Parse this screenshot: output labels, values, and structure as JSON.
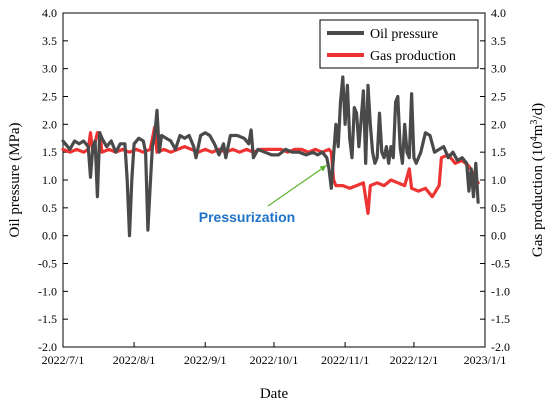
{
  "chart_data": {
    "type": "line",
    "xlabel": "Date",
    "ylabel_left": "Oil pressure (MPa)",
    "ylabel_right_parts": [
      "Gas production (10",
      "4",
      "m",
      "3",
      "/d)"
    ],
    "xlim": [
      "2022-07-01",
      "2023-01-01"
    ],
    "ylim_left": [
      -2.0,
      4.0
    ],
    "ylim_right": [
      -2.0,
      4.0
    ],
    "x_ticks": [
      {
        "date": "2022-07-01",
        "label": "2022/7/1"
      },
      {
        "date": "2022-08-01",
        "label": "2022/8/1"
      },
      {
        "date": "2022-09-01",
        "label": "2022/9/1"
      },
      {
        "date": "2022-10-01",
        "label": "2022/10/1"
      },
      {
        "date": "2022-11-01",
        "label": "2022/11/1"
      },
      {
        "date": "2022-12-01",
        "label": "2022/12/1"
      },
      {
        "date": "2023-01-01",
        "label": "2023/1/1"
      }
    ],
    "y_ticks": [
      "-2.0",
      "-1.5",
      "-1.0",
      "-0.5",
      "0.0",
      "0.5",
      "1.0",
      "1.5",
      "2.0",
      "2.5",
      "3.0",
      "3.5",
      "4.0"
    ],
    "legend_position": "top-right",
    "grid": false,
    "annotation": {
      "text": "Pressurization",
      "color": "#1e73c8",
      "arrow_color": "#5cb531",
      "target_date": "2022-10-30",
      "target_value": 1.55
    },
    "series": [
      {
        "name": "Oil pressure",
        "axis": "left",
        "color": "#4a4a4a",
        "points": [
          [
            "2022-07-01",
            1.7
          ],
          [
            "2022-07-02",
            1.65
          ],
          [
            "2022-07-04",
            1.55
          ],
          [
            "2022-07-06",
            1.7
          ],
          [
            "2022-07-08",
            1.65
          ],
          [
            "2022-07-10",
            1.7
          ],
          [
            "2022-07-12",
            1.6
          ],
          [
            "2022-07-13",
            1.05
          ],
          [
            "2022-07-14",
            1.6
          ],
          [
            "2022-07-15",
            1.7
          ],
          [
            "2022-07-16",
            0.7
          ],
          [
            "2022-07-17",
            1.85
          ],
          [
            "2022-07-18",
            1.75
          ],
          [
            "2022-07-20",
            1.6
          ],
          [
            "2022-07-22",
            1.7
          ],
          [
            "2022-07-24",
            1.5
          ],
          [
            "2022-07-26",
            1.65
          ],
          [
            "2022-07-28",
            1.65
          ],
          [
            "2022-07-29",
            1.0
          ],
          [
            "2022-07-30",
            0.0
          ],
          [
            "2022-07-31",
            1.0
          ],
          [
            "2022-08-01",
            1.65
          ],
          [
            "2022-08-03",
            1.75
          ],
          [
            "2022-08-05",
            1.7
          ],
          [
            "2022-08-06",
            1.5
          ],
          [
            "2022-08-07",
            0.1
          ],
          [
            "2022-08-08",
            0.9
          ],
          [
            "2022-08-09",
            1.6
          ],
          [
            "2022-08-10",
            1.8
          ],
          [
            "2022-08-11",
            2.25
          ],
          [
            "2022-08-12",
            1.5
          ],
          [
            "2022-08-13",
            1.8
          ],
          [
            "2022-08-15",
            1.75
          ],
          [
            "2022-08-17",
            1.7
          ],
          [
            "2022-08-19",
            1.55
          ],
          [
            "2022-08-21",
            1.8
          ],
          [
            "2022-08-23",
            1.75
          ],
          [
            "2022-08-25",
            1.8
          ],
          [
            "2022-08-27",
            1.6
          ],
          [
            "2022-08-28",
            1.4
          ],
          [
            "2022-08-30",
            1.8
          ],
          [
            "2022-09-01",
            1.85
          ],
          [
            "2022-09-03",
            1.8
          ],
          [
            "2022-09-05",
            1.65
          ],
          [
            "2022-09-07",
            1.45
          ],
          [
            "2022-09-09",
            1.65
          ],
          [
            "2022-09-10",
            1.4
          ],
          [
            "2022-09-12",
            1.8
          ],
          [
            "2022-09-15",
            1.8
          ],
          [
            "2022-09-18",
            1.75
          ],
          [
            "2022-09-20",
            1.65
          ],
          [
            "2022-09-21",
            1.9
          ],
          [
            "2022-09-22",
            1.4
          ],
          [
            "2022-09-24",
            1.55
          ],
          [
            "2022-09-27",
            1.5
          ],
          [
            "2022-09-30",
            1.45
          ],
          [
            "2022-10-03",
            1.45
          ],
          [
            "2022-10-06",
            1.55
          ],
          [
            "2022-10-09",
            1.5
          ],
          [
            "2022-10-12",
            1.5
          ],
          [
            "2022-10-15",
            1.45
          ],
          [
            "2022-10-18",
            1.5
          ],
          [
            "2022-10-20",
            1.45
          ],
          [
            "2022-10-22",
            1.5
          ],
          [
            "2022-10-24",
            1.4
          ],
          [
            "2022-10-25",
            1.2
          ],
          [
            "2022-10-26",
            0.85
          ],
          [
            "2022-10-27",
            1.45
          ],
          [
            "2022-10-28",
            2.0
          ],
          [
            "2022-10-29",
            1.6
          ],
          [
            "2022-10-30",
            2.4
          ],
          [
            "2022-10-31",
            2.85
          ],
          [
            "2022-11-01",
            2.0
          ],
          [
            "2022-11-02",
            2.7
          ],
          [
            "2022-11-03",
            1.75
          ],
          [
            "2022-11-04",
            1.4
          ],
          [
            "2022-11-05",
            2.3
          ],
          [
            "2022-11-06",
            2.2
          ],
          [
            "2022-11-07",
            1.6
          ],
          [
            "2022-11-08",
            2.1
          ],
          [
            "2022-11-09",
            2.6
          ],
          [
            "2022-11-10",
            1.3
          ],
          [
            "2022-11-11",
            2.7
          ],
          [
            "2022-11-12",
            2.0
          ],
          [
            "2022-11-13",
            1.5
          ],
          [
            "2022-11-14",
            1.3
          ],
          [
            "2022-11-15",
            1.4
          ],
          [
            "2022-11-16",
            2.2
          ],
          [
            "2022-11-17",
            1.5
          ],
          [
            "2022-11-18",
            1.4
          ],
          [
            "2022-11-19",
            1.6
          ],
          [
            "2022-11-20",
            1.3
          ],
          [
            "2022-11-21",
            1.6
          ],
          [
            "2022-11-22",
            1.4
          ],
          [
            "2022-11-23",
            2.4
          ],
          [
            "2022-11-24",
            2.5
          ],
          [
            "2022-11-25",
            1.6
          ],
          [
            "2022-11-26",
            1.3
          ],
          [
            "2022-11-27",
            2.0
          ],
          [
            "2022-11-28",
            1.5
          ],
          [
            "2022-11-29",
            1.4
          ],
          [
            "2022-11-30",
            2.55
          ],
          [
            "2022-12-01",
            1.4
          ],
          [
            "2022-12-02",
            1.3
          ],
          [
            "2022-12-04",
            1.5
          ],
          [
            "2022-12-06",
            1.85
          ],
          [
            "2022-12-08",
            1.8
          ],
          [
            "2022-12-10",
            1.5
          ],
          [
            "2022-12-12",
            1.55
          ],
          [
            "2022-12-14",
            1.6
          ],
          [
            "2022-12-16",
            1.4
          ],
          [
            "2022-12-18",
            1.5
          ],
          [
            "2022-12-20",
            1.35
          ],
          [
            "2022-12-22",
            1.4
          ],
          [
            "2022-12-24",
            1.3
          ],
          [
            "2022-12-25",
            0.8
          ],
          [
            "2022-12-26",
            1.2
          ],
          [
            "2022-12-27",
            0.7
          ],
          [
            "2022-12-28",
            1.3
          ],
          [
            "2022-12-29",
            0.6
          ]
        ]
      },
      {
        "name": "Gas production",
        "axis": "right",
        "color": "#ee3333",
        "points": [
          [
            "2022-07-01",
            1.55
          ],
          [
            "2022-07-04",
            1.5
          ],
          [
            "2022-07-07",
            1.55
          ],
          [
            "2022-07-10",
            1.5
          ],
          [
            "2022-07-12",
            1.55
          ],
          [
            "2022-07-13",
            1.85
          ],
          [
            "2022-07-14",
            1.5
          ],
          [
            "2022-07-16",
            1.85
          ],
          [
            "2022-07-17",
            1.85
          ],
          [
            "2022-07-18",
            1.5
          ],
          [
            "2022-07-21",
            1.55
          ],
          [
            "2022-07-24",
            1.5
          ],
          [
            "2022-07-27",
            1.55
          ],
          [
            "2022-07-30",
            1.5
          ],
          [
            "2022-08-02",
            1.55
          ],
          [
            "2022-08-05",
            1.5
          ],
          [
            "2022-08-08",
            1.55
          ],
          [
            "2022-08-10",
            1.95
          ],
          [
            "2022-08-11",
            1.5
          ],
          [
            "2022-08-14",
            1.55
          ],
          [
            "2022-08-17",
            1.5
          ],
          [
            "2022-08-20",
            1.55
          ],
          [
            "2022-08-23",
            1.6
          ],
          [
            "2022-08-26",
            1.55
          ],
          [
            "2022-08-29",
            1.5
          ],
          [
            "2022-09-01",
            1.55
          ],
          [
            "2022-09-04",
            1.5
          ],
          [
            "2022-09-07",
            1.55
          ],
          [
            "2022-09-10",
            1.5
          ],
          [
            "2022-09-13",
            1.55
          ],
          [
            "2022-09-16",
            1.5
          ],
          [
            "2022-09-19",
            1.55
          ],
          [
            "2022-09-22",
            1.5
          ],
          [
            "2022-09-25",
            1.55
          ],
          [
            "2022-09-28",
            1.55
          ],
          [
            "2022-10-01",
            1.55
          ],
          [
            "2022-10-04",
            1.55
          ],
          [
            "2022-10-07",
            1.5
          ],
          [
            "2022-10-10",
            1.55
          ],
          [
            "2022-10-13",
            1.55
          ],
          [
            "2022-10-16",
            1.5
          ],
          [
            "2022-10-19",
            1.55
          ],
          [
            "2022-10-22",
            1.5
          ],
          [
            "2022-10-25",
            1.55
          ],
          [
            "2022-10-26",
            1.5
          ],
          [
            "2022-10-27",
            1.0
          ],
          [
            "2022-10-28",
            0.9
          ],
          [
            "2022-10-31",
            0.9
          ],
          [
            "2022-11-03",
            0.85
          ],
          [
            "2022-11-06",
            0.9
          ],
          [
            "2022-11-09",
            0.95
          ],
          [
            "2022-11-11",
            0.4
          ],
          [
            "2022-11-12",
            0.9
          ],
          [
            "2022-11-15",
            0.95
          ],
          [
            "2022-11-18",
            0.9
          ],
          [
            "2022-11-21",
            1.0
          ],
          [
            "2022-11-24",
            0.95
          ],
          [
            "2022-11-27",
            0.9
          ],
          [
            "2022-11-29",
            1.2
          ],
          [
            "2022-11-30",
            0.85
          ],
          [
            "2022-12-03",
            0.8
          ],
          [
            "2022-12-06",
            0.85
          ],
          [
            "2022-12-09",
            0.7
          ],
          [
            "2022-12-12",
            0.9
          ],
          [
            "2022-12-13",
            1.4
          ],
          [
            "2022-12-16",
            1.45
          ],
          [
            "2022-12-19",
            1.3
          ],
          [
            "2022-12-22",
            1.35
          ],
          [
            "2022-12-25",
            1.25
          ],
          [
            "2022-12-27",
            1.1
          ],
          [
            "2022-12-29",
            0.95
          ]
        ]
      }
    ]
  }
}
